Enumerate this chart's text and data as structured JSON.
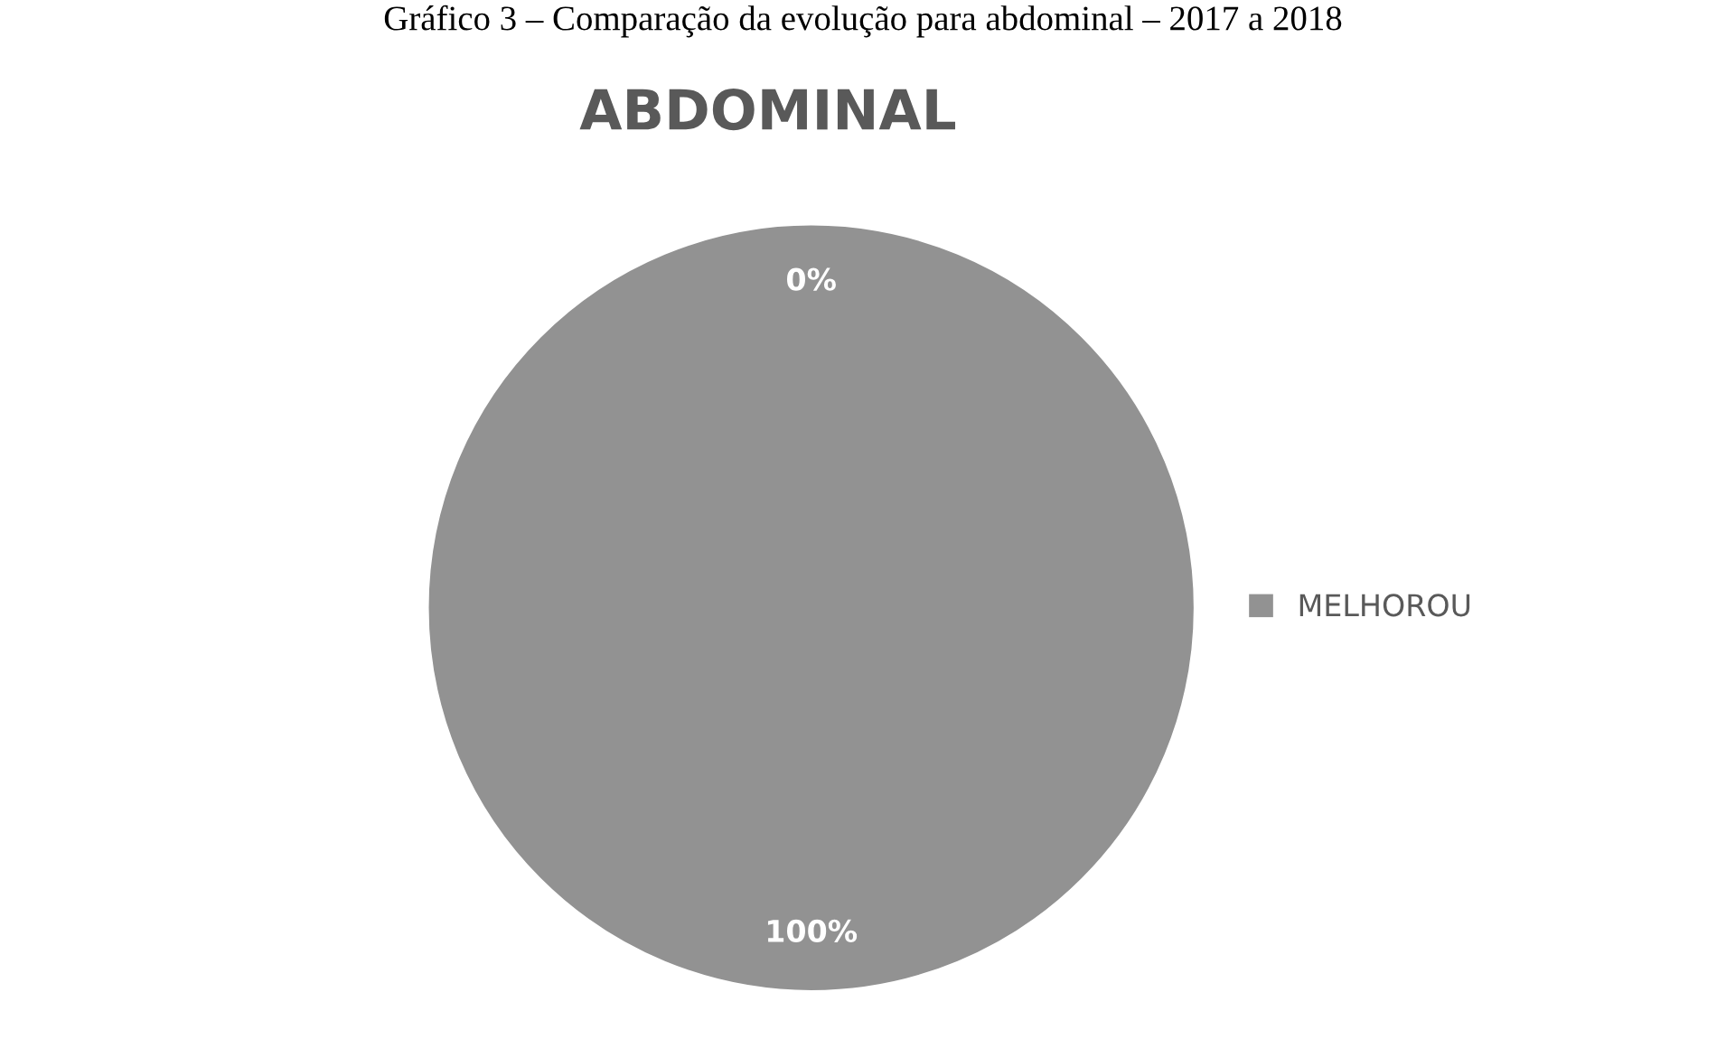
{
  "chart_data": {
    "type": "pie",
    "title": "ABDOMINAL",
    "annotations": [
      "Gráfico 3 – Comparação da evolução para abdominal – 2017 a 2018"
    ],
    "categories": [
      null,
      "MELHOROU"
    ],
    "values": [
      0,
      100
    ],
    "colors": [
      "#929292",
      "#929292"
    ],
    "value_labels": [
      "0%",
      "100%"
    ],
    "legend": "right"
  }
}
